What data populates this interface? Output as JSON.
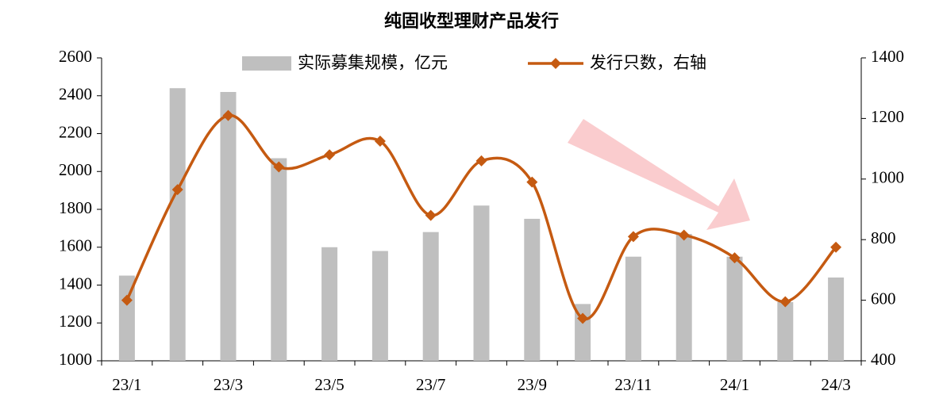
{
  "chart_data": {
    "type": "bar-line",
    "title": "纯固收型理财产品发行",
    "categories": [
      "23/1",
      null,
      "23/3",
      null,
      "23/5",
      null,
      "23/7",
      null,
      "23/9",
      null,
      "23/11",
      null,
      "24/1",
      null,
      "24/3"
    ],
    "series": [
      {
        "name": "实际募集规模，亿元",
        "type": "bar",
        "color": "#bfbfbf",
        "values": [
          1450,
          2440,
          2420,
          2070,
          1600,
          1580,
          1680,
          1820,
          1750,
          1300,
          1550,
          1670,
          1550,
          1310,
          1440
        ]
      },
      {
        "name": "发行只数，右轴",
        "type": "line",
        "axis": "y2",
        "color": "#c55a11",
        "values": [
          600,
          965,
          1210,
          1040,
          1080,
          1125,
          880,
          1060,
          990,
          540,
          810,
          815,
          740,
          595,
          775
        ]
      }
    ],
    "ylim": [
      1000,
      2600
    ],
    "yticks": [
      1000,
      1200,
      1400,
      1600,
      1800,
      2000,
      2200,
      2400,
      2600
    ],
    "y2lim": [
      400,
      1400
    ],
    "y2ticks": [
      400,
      600,
      800,
      1000,
      1200,
      1400
    ]
  }
}
